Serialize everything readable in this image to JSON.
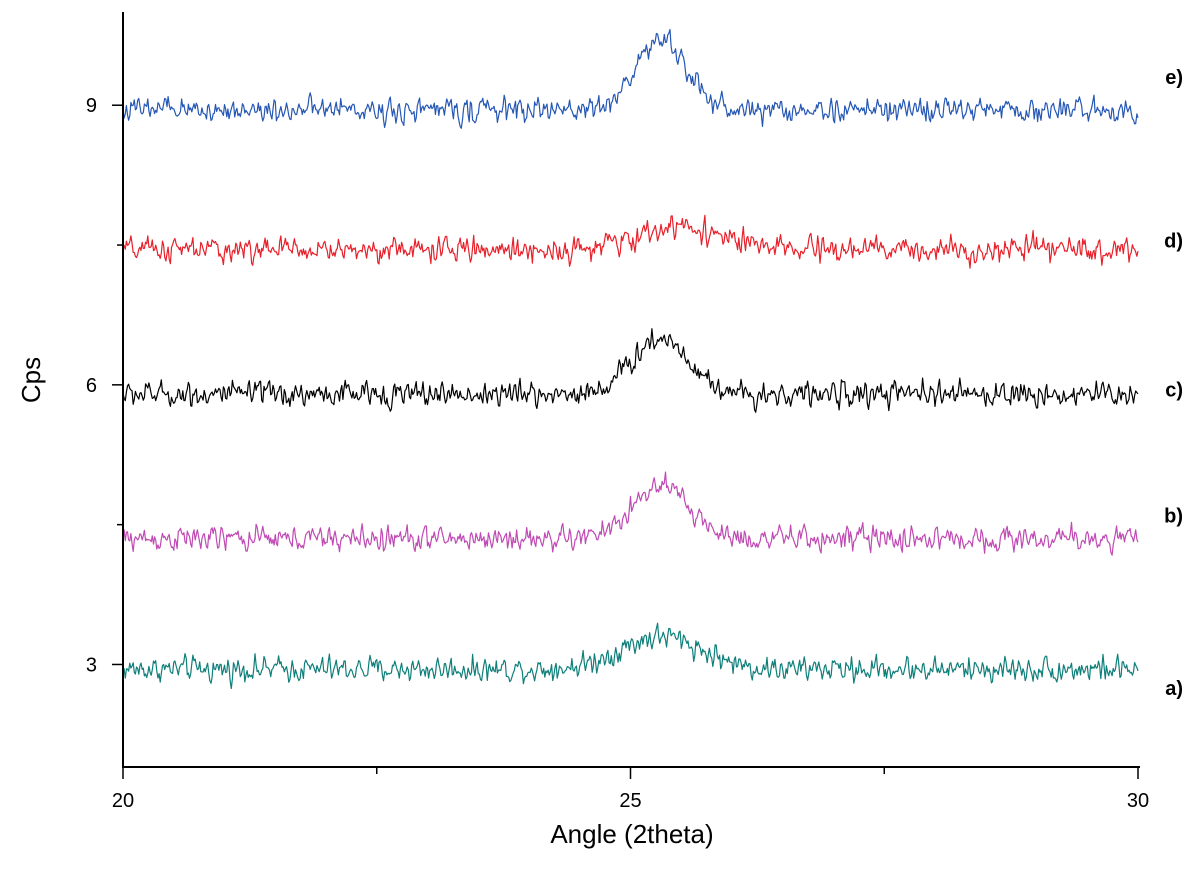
{
  "chart_data": {
    "type": "line",
    "title": "",
    "xlabel": "Angle (2theta)",
    "ylabel": "Cps",
    "xlim": [
      20,
      30
    ],
    "ylim": [
      1.9,
      10.0
    ],
    "x_ticks": [
      20,
      25,
      30
    ],
    "x_minor_ticks": [
      22.5,
      27.5
    ],
    "y_ticks": [
      3,
      6,
      9
    ],
    "y_minor_ticks": [
      4.5,
      7.5
    ],
    "grid": false,
    "legend": "none",
    "noise_amplitude": 0.26,
    "series": [
      {
        "name": "a)",
        "color": "#0f7f7a",
        "baseline": 2.95,
        "peak_center": 25.3,
        "peak_height": 0.35,
        "peak_width": 0.55,
        "label_at": 2.75
      },
      {
        "name": "b)",
        "color": "#c04ab4",
        "baseline": 4.35,
        "peak_center": 25.3,
        "peak_height": 0.55,
        "peak_width": 0.4,
        "label_at": 4.6
      },
      {
        "name": "c)",
        "color": "#000000",
        "baseline": 5.9,
        "peak_center": 25.3,
        "peak_height": 0.6,
        "peak_width": 0.4,
        "label_at": 5.95
      },
      {
        "name": "d)",
        "color": "#e8202a",
        "baseline": 7.45,
        "peak_center": 25.5,
        "peak_height": 0.25,
        "peak_width": 0.55,
        "label_at": 7.55
      },
      {
        "name": "e)",
        "color": "#2557b5",
        "baseline": 8.95,
        "peak_center": 25.3,
        "peak_height": 0.75,
        "peak_width": 0.35,
        "label_at": 9.3
      }
    ]
  }
}
